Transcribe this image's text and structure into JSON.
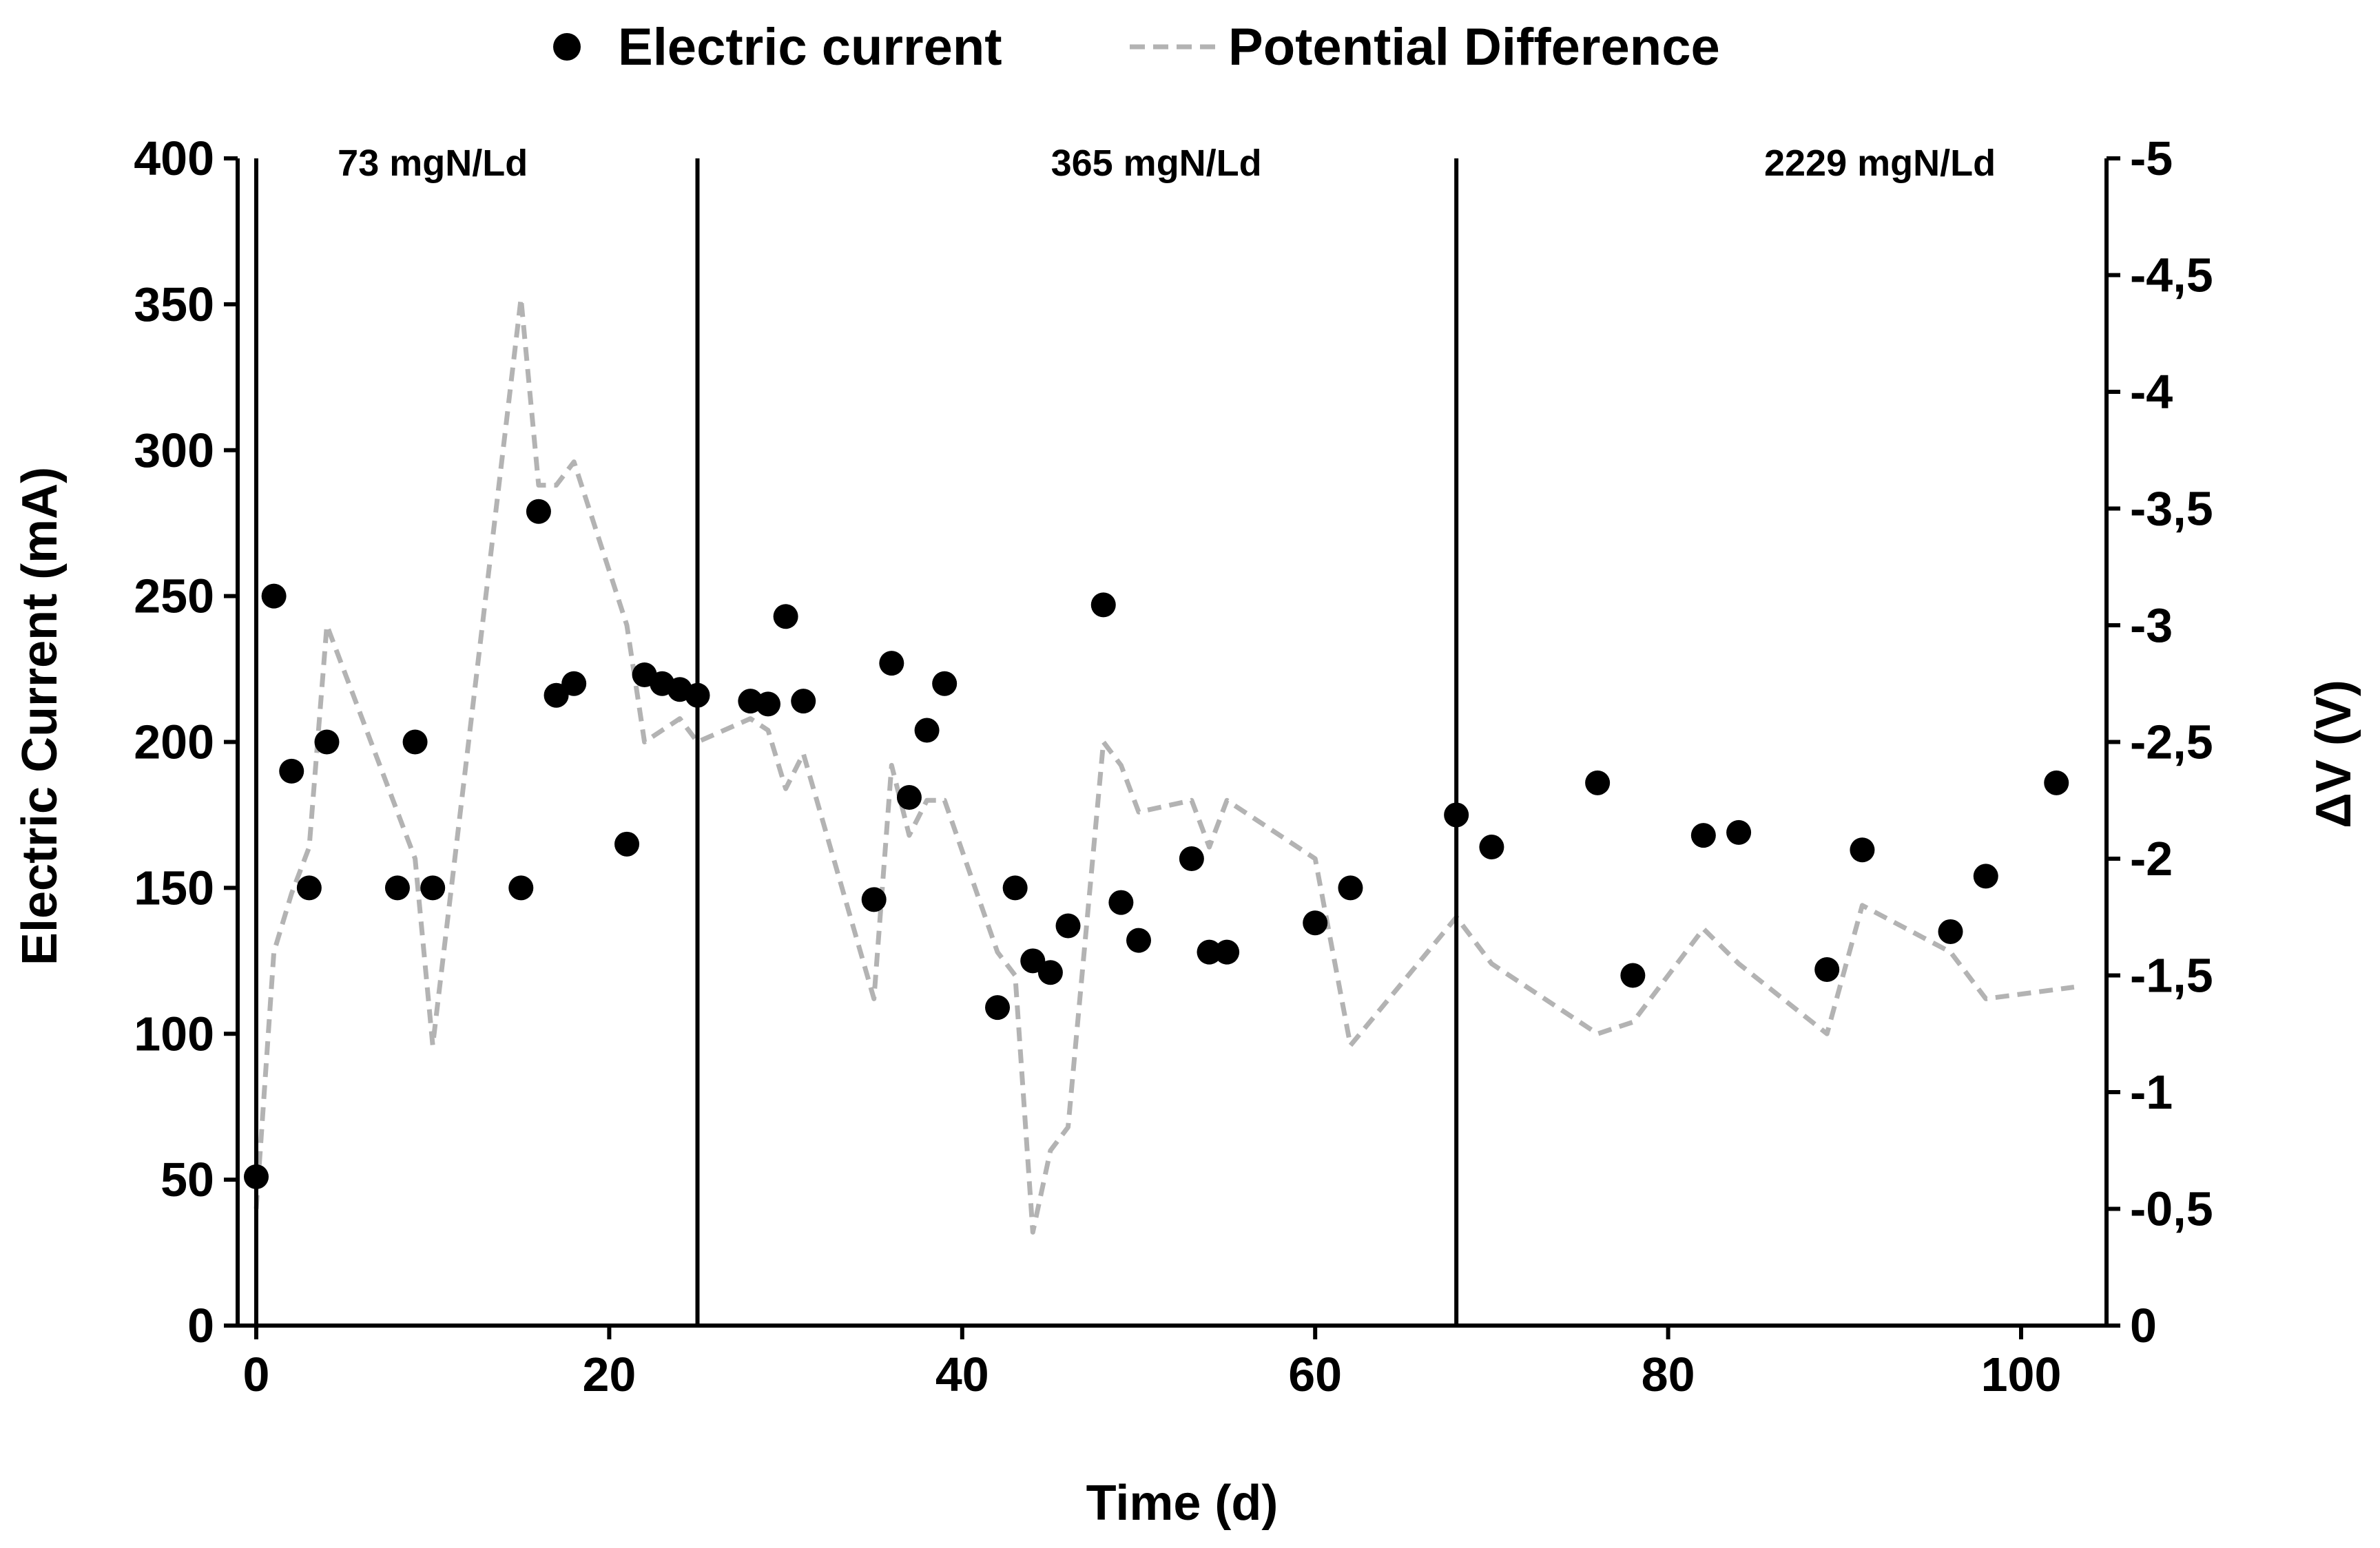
{
  "colors": {
    "current_marker": "#000000",
    "potential_line": "#b3b3b3",
    "axis": "#000000",
    "phase_line": "#000000"
  },
  "chart_data": {
    "type": "scatter+line",
    "title": "",
    "legend": {
      "placement": "top-center",
      "items": [
        {
          "label": "Electric current",
          "symbol": "filled-circle-marker"
        },
        {
          "label": "Potential Difference",
          "symbol": "dashed-line"
        }
      ]
    },
    "xlabel": "Time (d)",
    "ylabel_left": "Electric Current (mA)",
    "ylabel_right": "ΔV (V)",
    "xlim": [
      0,
      105
    ],
    "ylim_left": [
      0,
      400
    ],
    "ylim_right": [
      0,
      -5
    ],
    "x_ticks": [
      0,
      20,
      40,
      60,
      80,
      100
    ],
    "x_tick_labels": [
      "0",
      "20",
      "40",
      "60",
      "80",
      "100"
    ],
    "y_left_ticks": [
      0,
      50,
      100,
      150,
      200,
      250,
      300,
      350,
      400
    ],
    "y_left_tick_labels": [
      "0",
      "50",
      "100",
      "150",
      "200",
      "250",
      "300",
      "350",
      "400"
    ],
    "y_right_ticks": [
      0,
      -0.5,
      -1,
      -1.5,
      -2,
      -2.5,
      -3,
      -3.5,
      -4,
      -4.5,
      -5
    ],
    "y_right_tick_labels": [
      "0",
      "-0,5",
      "-1",
      "-1,5",
      "-2",
      "-2,5",
      "-3",
      "-3,5",
      "-4",
      "-4,5",
      "-5"
    ],
    "phase_boundaries": [
      25,
      68
    ],
    "phase_labels": [
      {
        "text": "73 mgN/Ld",
        "x": 10
      },
      {
        "text": "365 mgN/Ld",
        "x": 51
      },
      {
        "text": "2229 mgN/Ld",
        "x": 92
      }
    ],
    "series": [
      {
        "name": "Electric current",
        "axis": "left",
        "type": "scatter",
        "points": [
          [
            0,
            51
          ],
          [
            1,
            250
          ],
          [
            2,
            190
          ],
          [
            3,
            150
          ],
          [
            4,
            200
          ],
          [
            8,
            150
          ],
          [
            9,
            200
          ],
          [
            10,
            150
          ],
          [
            15,
            150
          ],
          [
            16,
            279
          ],
          [
            17,
            216
          ],
          [
            18,
            220
          ],
          [
            21,
            165
          ],
          [
            22,
            223
          ],
          [
            23,
            220
          ],
          [
            24,
            218
          ],
          [
            25,
            216
          ],
          [
            28,
            214
          ],
          [
            29,
            213
          ],
          [
            30,
            243
          ],
          [
            31,
            214
          ],
          [
            35,
            146
          ],
          [
            36,
            227
          ],
          [
            37,
            181
          ],
          [
            38,
            204
          ],
          [
            39,
            220
          ],
          [
            42,
            109
          ],
          [
            43,
            150
          ],
          [
            44,
            125
          ],
          [
            45,
            121
          ],
          [
            46,
            137
          ],
          [
            48,
            247
          ],
          [
            49,
            145
          ],
          [
            50,
            132
          ],
          [
            53,
            160
          ],
          [
            54,
            128
          ],
          [
            55,
            128
          ],
          [
            60,
            138
          ],
          [
            62,
            150
          ],
          [
            68,
            175
          ],
          [
            70,
            164
          ],
          [
            76,
            186
          ],
          [
            78,
            120
          ],
          [
            82,
            168
          ],
          [
            84,
            169
          ],
          [
            89,
            122
          ],
          [
            91,
            163
          ],
          [
            96,
            135
          ],
          [
            98,
            154
          ],
          [
            102,
            186
          ]
        ]
      },
      {
        "name": "Potential Difference",
        "axis": "right",
        "type": "line",
        "points": [
          [
            0,
            -0.5
          ],
          [
            1,
            -1.6
          ],
          [
            2,
            -1.85
          ],
          [
            3,
            -2.05
          ],
          [
            4,
            -3.0
          ],
          [
            9,
            -2.0
          ],
          [
            10,
            -1.2
          ],
          [
            15,
            -4.4
          ],
          [
            16,
            -3.6
          ],
          [
            17,
            -3.6
          ],
          [
            18,
            -3.7
          ],
          [
            21,
            -3.0
          ],
          [
            22,
            -2.5
          ],
          [
            23,
            -2.55
          ],
          [
            24,
            -2.6
          ],
          [
            25,
            -2.5
          ],
          [
            28,
            -2.6
          ],
          [
            29,
            -2.55
          ],
          [
            30,
            -2.3
          ],
          [
            31,
            -2.45
          ],
          [
            35,
            -1.4
          ],
          [
            36,
            -2.4
          ],
          [
            37,
            -2.1
          ],
          [
            38,
            -2.25
          ],
          [
            39,
            -2.25
          ],
          [
            42,
            -1.6
          ],
          [
            43,
            -1.5
          ],
          [
            44,
            -0.4
          ],
          [
            45,
            -0.75
          ],
          [
            46,
            -0.85
          ],
          [
            48,
            -2.5
          ],
          [
            49,
            -2.4
          ],
          [
            50,
            -2.2
          ],
          [
            53,
            -2.25
          ],
          [
            54,
            -2.05
          ],
          [
            55,
            -2.25
          ],
          [
            60,
            -2.0
          ],
          [
            62,
            -1.2
          ],
          [
            68,
            -1.75
          ],
          [
            70,
            -1.55
          ],
          [
            76,
            -1.25
          ],
          [
            78,
            -1.3
          ],
          [
            82,
            -1.7
          ],
          [
            84,
            -1.55
          ],
          [
            89,
            -1.25
          ],
          [
            91,
            -1.8
          ],
          [
            96,
            -1.6
          ],
          [
            98,
            -1.4
          ],
          [
            103,
            -1.45
          ]
        ]
      }
    ]
  }
}
